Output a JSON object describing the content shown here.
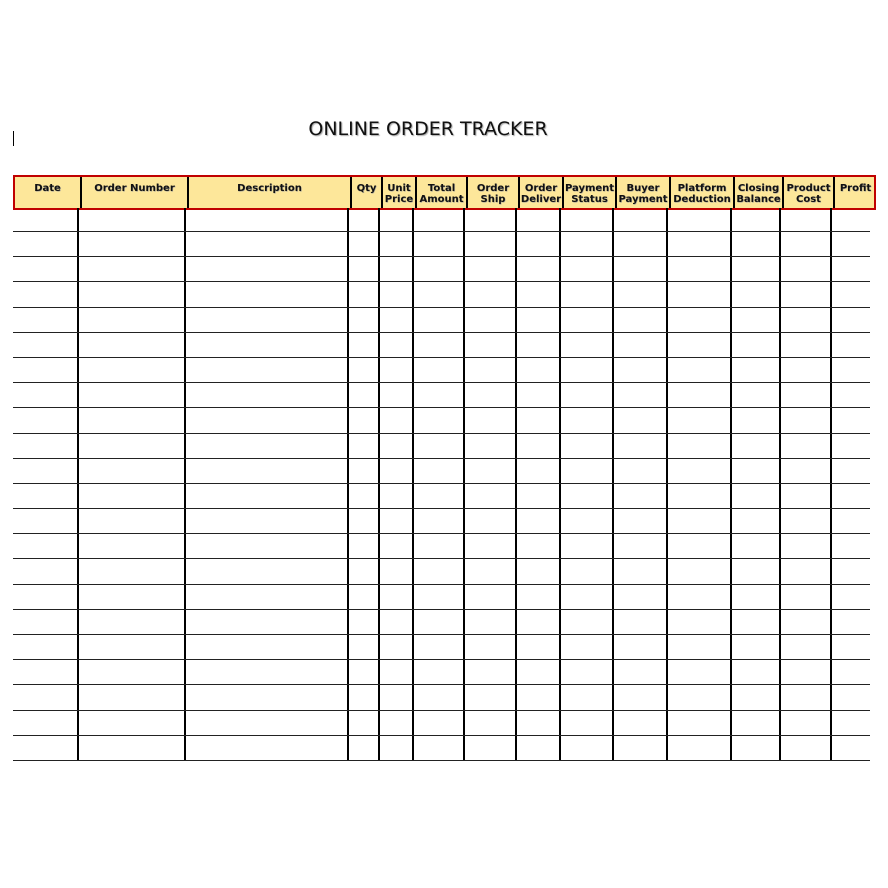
{
  "title": "ONLINE ORDER TRACKER",
  "colors": {
    "header_fill": "#fde79a",
    "header_border": "#c00000"
  },
  "table": {
    "columns": [
      {
        "label": "Date"
      },
      {
        "label": "Order Number"
      },
      {
        "label": "Description"
      },
      {
        "label": "Qty"
      },
      {
        "label": "Unit Price"
      },
      {
        "label": "Total Amount"
      },
      {
        "label": "Order Ship"
      },
      {
        "label": "Order Deliver"
      },
      {
        "label": "Payment Status"
      },
      {
        "label": "Buyer Payment"
      },
      {
        "label": "Platform Deduction"
      },
      {
        "label": "Closing Balance"
      },
      {
        "label": "Product Cost"
      },
      {
        "label": "Profit"
      }
    ],
    "row_count": 22
  }
}
